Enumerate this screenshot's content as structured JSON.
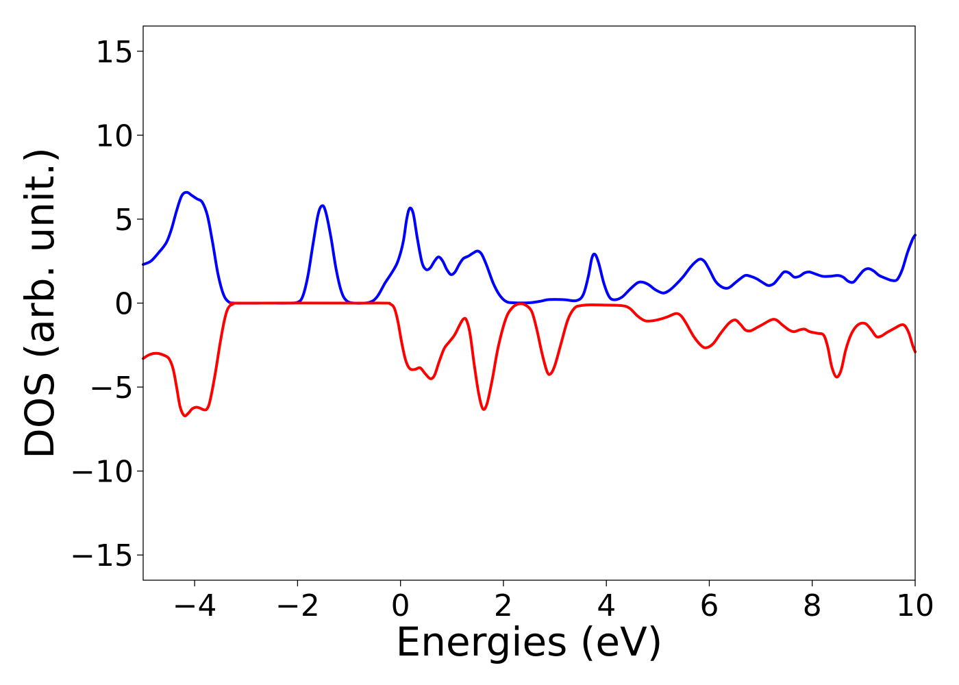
{
  "chart_data": {
    "type": "line",
    "title": "",
    "xlabel": "Energies (eV)",
    "ylabel": "DOS (arb. unit.)",
    "xlim": [
      -5,
      10
    ],
    "ylim": [
      -16.5,
      16.5
    ],
    "grid": false,
    "xticks": [
      -4,
      -2,
      0,
      2,
      4,
      6,
      8,
      10
    ],
    "xtick_labels": [
      "−4",
      "−2",
      "0",
      "2",
      "4",
      "6",
      "8",
      "10"
    ],
    "yticks": [
      15,
      10,
      5,
      0,
      -5,
      -10,
      -15
    ],
    "ytick_labels": [
      "15",
      "10",
      "5",
      "0",
      "−5",
      "−10",
      "−15"
    ],
    "series": [
      {
        "color": "#0000ff",
        "points": [
          [
            -5.0,
            2.3
          ],
          [
            -4.85,
            2.5
          ],
          [
            -4.7,
            3.0
          ],
          [
            -4.55,
            3.6
          ],
          [
            -4.45,
            4.4
          ],
          [
            -4.35,
            5.5
          ],
          [
            -4.25,
            6.4
          ],
          [
            -4.15,
            6.6
          ],
          [
            -4.05,
            6.4
          ],
          [
            -3.95,
            6.2
          ],
          [
            -3.85,
            6.0
          ],
          [
            -3.75,
            5.2
          ],
          [
            -3.65,
            3.6
          ],
          [
            -3.55,
            1.8
          ],
          [
            -3.45,
            0.6
          ],
          [
            -3.35,
            0.1
          ],
          [
            -3.2,
            0.0
          ],
          [
            -2.6,
            0.0
          ],
          [
            -2.2,
            0.0
          ],
          [
            -2.0,
            0.05
          ],
          [
            -1.9,
            0.4
          ],
          [
            -1.8,
            1.6
          ],
          [
            -1.7,
            3.5
          ],
          [
            -1.6,
            5.3
          ],
          [
            -1.52,
            5.8
          ],
          [
            -1.45,
            5.4
          ],
          [
            -1.35,
            3.9
          ],
          [
            -1.25,
            2.0
          ],
          [
            -1.15,
            0.7
          ],
          [
            -1.05,
            0.15
          ],
          [
            -0.9,
            0.0
          ],
          [
            -0.6,
            0.05
          ],
          [
            -0.45,
            0.4
          ],
          [
            -0.3,
            1.2
          ],
          [
            -0.15,
            1.9
          ],
          [
            -0.05,
            2.5
          ],
          [
            0.05,
            3.6
          ],
          [
            0.12,
            5.0
          ],
          [
            0.18,
            5.65
          ],
          [
            0.25,
            5.3
          ],
          [
            0.33,
            3.8
          ],
          [
            0.42,
            2.4
          ],
          [
            0.5,
            2.0
          ],
          [
            0.58,
            2.1
          ],
          [
            0.66,
            2.5
          ],
          [
            0.74,
            2.75
          ],
          [
            0.82,
            2.5
          ],
          [
            0.9,
            2.0
          ],
          [
            0.98,
            1.7
          ],
          [
            1.06,
            1.85
          ],
          [
            1.14,
            2.3
          ],
          [
            1.22,
            2.65
          ],
          [
            1.32,
            2.8
          ],
          [
            1.42,
            3.0
          ],
          [
            1.5,
            3.1
          ],
          [
            1.58,
            2.9
          ],
          [
            1.68,
            2.2
          ],
          [
            1.8,
            1.2
          ],
          [
            1.92,
            0.5
          ],
          [
            2.05,
            0.1
          ],
          [
            2.2,
            0.02
          ],
          [
            2.5,
            0.02
          ],
          [
            2.7,
            0.1
          ],
          [
            2.85,
            0.2
          ],
          [
            3.0,
            0.22
          ],
          [
            3.2,
            0.2
          ],
          [
            3.42,
            0.15
          ],
          [
            3.55,
            0.5
          ],
          [
            3.65,
            1.6
          ],
          [
            3.72,
            2.7
          ],
          [
            3.78,
            2.9
          ],
          [
            3.85,
            2.4
          ],
          [
            3.95,
            1.2
          ],
          [
            4.05,
            0.4
          ],
          [
            4.15,
            0.2
          ],
          [
            4.3,
            0.35
          ],
          [
            4.45,
            0.8
          ],
          [
            4.6,
            1.2
          ],
          [
            4.7,
            1.25
          ],
          [
            4.82,
            1.1
          ],
          [
            4.95,
            0.8
          ],
          [
            5.1,
            0.6
          ],
          [
            5.22,
            0.75
          ],
          [
            5.35,
            1.1
          ],
          [
            5.5,
            1.6
          ],
          [
            5.65,
            2.2
          ],
          [
            5.8,
            2.6
          ],
          [
            5.9,
            2.5
          ],
          [
            6.0,
            2.0
          ],
          [
            6.12,
            1.3
          ],
          [
            6.25,
            0.95
          ],
          [
            6.37,
            0.9
          ],
          [
            6.5,
            1.2
          ],
          [
            6.6,
            1.45
          ],
          [
            6.7,
            1.65
          ],
          [
            6.8,
            1.6
          ],
          [
            6.92,
            1.45
          ],
          [
            7.05,
            1.2
          ],
          [
            7.15,
            1.05
          ],
          [
            7.25,
            1.15
          ],
          [
            7.35,
            1.5
          ],
          [
            7.45,
            1.85
          ],
          [
            7.55,
            1.8
          ],
          [
            7.65,
            1.55
          ],
          [
            7.75,
            1.6
          ],
          [
            7.85,
            1.8
          ],
          [
            7.95,
            1.85
          ],
          [
            8.05,
            1.75
          ],
          [
            8.2,
            1.6
          ],
          [
            8.35,
            1.6
          ],
          [
            8.5,
            1.65
          ],
          [
            8.6,
            1.55
          ],
          [
            8.7,
            1.3
          ],
          [
            8.8,
            1.25
          ],
          [
            8.9,
            1.6
          ],
          [
            9.0,
            1.95
          ],
          [
            9.1,
            2.05
          ],
          [
            9.2,
            1.9
          ],
          [
            9.3,
            1.65
          ],
          [
            9.45,
            1.45
          ],
          [
            9.55,
            1.35
          ],
          [
            9.65,
            1.4
          ],
          [
            9.75,
            2.0
          ],
          [
            9.85,
            3.0
          ],
          [
            9.95,
            3.8
          ],
          [
            10.0,
            4.05
          ]
        ]
      },
      {
        "color": "#ff0000",
        "points": [
          [
            -5.0,
            -3.3
          ],
          [
            -4.9,
            -3.1
          ],
          [
            -4.8,
            -3.0
          ],
          [
            -4.7,
            -3.0
          ],
          [
            -4.6,
            -3.1
          ],
          [
            -4.5,
            -3.3
          ],
          [
            -4.42,
            -3.9
          ],
          [
            -4.35,
            -5.0
          ],
          [
            -4.28,
            -6.2
          ],
          [
            -4.2,
            -6.7
          ],
          [
            -4.12,
            -6.55
          ],
          [
            -4.05,
            -6.3
          ],
          [
            -3.97,
            -6.2
          ],
          [
            -3.9,
            -6.25
          ],
          [
            -3.82,
            -6.35
          ],
          [
            -3.76,
            -6.3
          ],
          [
            -3.7,
            -5.8
          ],
          [
            -3.6,
            -4.2
          ],
          [
            -3.5,
            -2.3
          ],
          [
            -3.42,
            -1.0
          ],
          [
            -3.35,
            -0.3
          ],
          [
            -3.25,
            -0.05
          ],
          [
            -3.1,
            0.0
          ],
          [
            -1.0,
            0.0
          ],
          [
            -0.3,
            0.0
          ],
          [
            -0.2,
            -0.05
          ],
          [
            -0.12,
            -0.3
          ],
          [
            -0.05,
            -1.1
          ],
          [
            0.02,
            -2.3
          ],
          [
            0.1,
            -3.4
          ],
          [
            0.18,
            -3.9
          ],
          [
            0.28,
            -3.95
          ],
          [
            0.38,
            -3.85
          ],
          [
            0.48,
            -4.2
          ],
          [
            0.58,
            -4.5
          ],
          [
            0.66,
            -4.3
          ],
          [
            0.75,
            -3.5
          ],
          [
            0.85,
            -2.7
          ],
          [
            0.95,
            -2.3
          ],
          [
            1.05,
            -1.9
          ],
          [
            1.15,
            -1.3
          ],
          [
            1.22,
            -0.95
          ],
          [
            1.28,
            -1.0
          ],
          [
            1.35,
            -1.8
          ],
          [
            1.43,
            -3.6
          ],
          [
            1.52,
            -5.4
          ],
          [
            1.6,
            -6.3
          ],
          [
            1.68,
            -6.0
          ],
          [
            1.78,
            -4.6
          ],
          [
            1.9,
            -2.6
          ],
          [
            2.05,
            -0.9
          ],
          [
            2.18,
            -0.25
          ],
          [
            2.3,
            -0.05
          ],
          [
            2.42,
            -0.1
          ],
          [
            2.55,
            -0.5
          ],
          [
            2.65,
            -1.6
          ],
          [
            2.75,
            -3.0
          ],
          [
            2.85,
            -4.1
          ],
          [
            2.92,
            -4.2
          ],
          [
            3.0,
            -3.7
          ],
          [
            3.12,
            -2.4
          ],
          [
            3.25,
            -1.0
          ],
          [
            3.38,
            -0.3
          ],
          [
            3.5,
            -0.15
          ],
          [
            3.7,
            -0.1
          ],
          [
            4.0,
            -0.12
          ],
          [
            4.3,
            -0.15
          ],
          [
            4.45,
            -0.3
          ],
          [
            4.6,
            -0.75
          ],
          [
            4.75,
            -1.05
          ],
          [
            4.9,
            -1.05
          ],
          [
            5.05,
            -0.95
          ],
          [
            5.2,
            -0.8
          ],
          [
            5.35,
            -0.62
          ],
          [
            5.45,
            -0.75
          ],
          [
            5.55,
            -1.2
          ],
          [
            5.7,
            -2.0
          ],
          [
            5.85,
            -2.55
          ],
          [
            5.95,
            -2.65
          ],
          [
            6.08,
            -2.4
          ],
          [
            6.22,
            -1.8
          ],
          [
            6.38,
            -1.2
          ],
          [
            6.5,
            -1.0
          ],
          [
            6.6,
            -1.25
          ],
          [
            6.7,
            -1.6
          ],
          [
            6.8,
            -1.65
          ],
          [
            6.9,
            -1.5
          ],
          [
            7.05,
            -1.25
          ],
          [
            7.2,
            -1.0
          ],
          [
            7.3,
            -1.0
          ],
          [
            7.42,
            -1.3
          ],
          [
            7.55,
            -1.6
          ],
          [
            7.65,
            -1.7
          ],
          [
            7.75,
            -1.6
          ],
          [
            7.85,
            -1.55
          ],
          [
            7.95,
            -1.7
          ],
          [
            8.1,
            -1.8
          ],
          [
            8.22,
            -1.9
          ],
          [
            8.3,
            -2.6
          ],
          [
            8.38,
            -3.8
          ],
          [
            8.47,
            -4.4
          ],
          [
            8.56,
            -4.0
          ],
          [
            8.65,
            -2.8
          ],
          [
            8.75,
            -1.9
          ],
          [
            8.85,
            -1.4
          ],
          [
            8.95,
            -1.2
          ],
          [
            9.05,
            -1.25
          ],
          [
            9.15,
            -1.6
          ],
          [
            9.25,
            -2.0
          ],
          [
            9.35,
            -1.95
          ],
          [
            9.45,
            -1.75
          ],
          [
            9.6,
            -1.5
          ],
          [
            9.72,
            -1.3
          ],
          [
            9.8,
            -1.35
          ],
          [
            9.88,
            -1.8
          ],
          [
            9.95,
            -2.5
          ],
          [
            10.0,
            -2.9
          ]
        ]
      }
    ]
  }
}
